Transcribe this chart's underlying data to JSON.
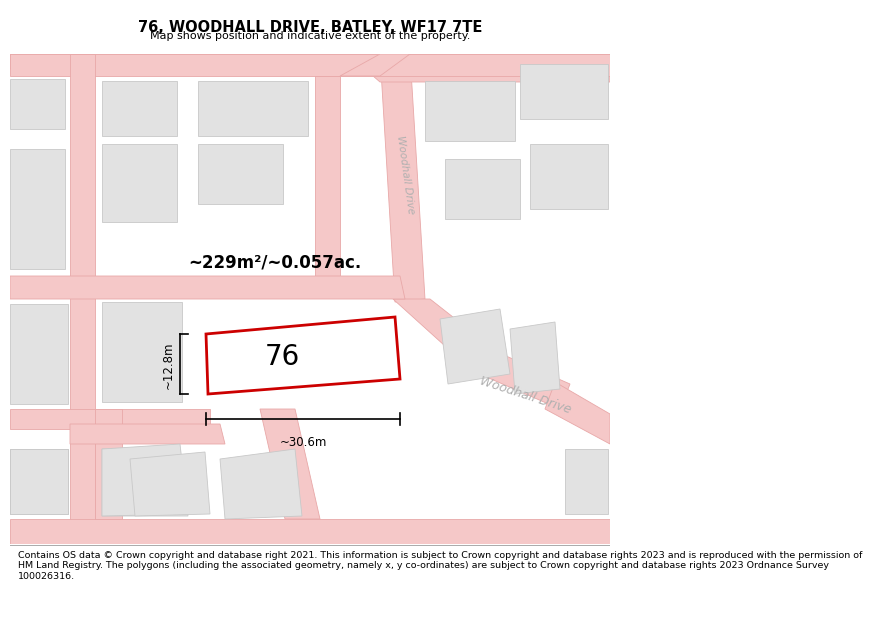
{
  "title": "76, WOODHALL DRIVE, BATLEY, WF17 7TE",
  "subtitle": "Map shows position and indicative extent of the property.",
  "footer_line1": "Contains OS data © Crown copyright and database right 2021. This information is subject to Crown copyright and database rights 2023 and is reproduced with the permission of",
  "footer_line2": "HM Land Registry. The polygons (including the associated geometry, namely x, y co-ordinates) are subject to Crown copyright and database rights 2023 Ordnance Survey",
  "footer_line3": "100026316.",
  "map_bg": "#faf4f4",
  "road_color": "#f5c8c8",
  "road_edge_color": "#e8a8a8",
  "building_fill": "#e2e2e2",
  "building_edge": "#c8c8c8",
  "highlight_fill": "#ffffff",
  "highlight_edge": "#cc0000",
  "highlight_lw": 2.0,
  "area_text": "~229m²/~0.057ac.",
  "width_text": "~30.6m",
  "height_text": "~12.8m",
  "label_76": "76",
  "street_label_vert": "Woodhall Drive",
  "street_label_horiz": "Woodhall Drive"
}
